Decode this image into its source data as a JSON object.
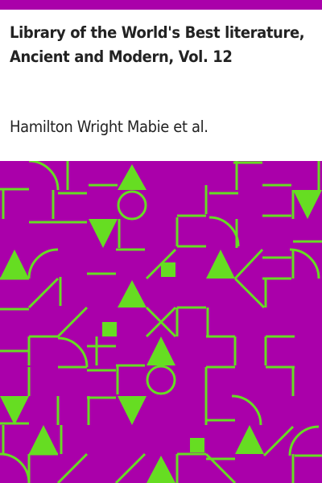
{
  "book": {
    "title": "Library of the World's Best literature, Ancient and Modern, Vol. 12",
    "author": "Hamilton Wright Mabie et al."
  },
  "colors": {
    "accent": "#aa00aa",
    "pattern_background": "#aa00aa",
    "pattern_foreground": "#66dd22",
    "text": "#222222",
    "page": "#ffffff"
  },
  "cover_art": {
    "description_icon": "geometric-pattern-icon"
  }
}
